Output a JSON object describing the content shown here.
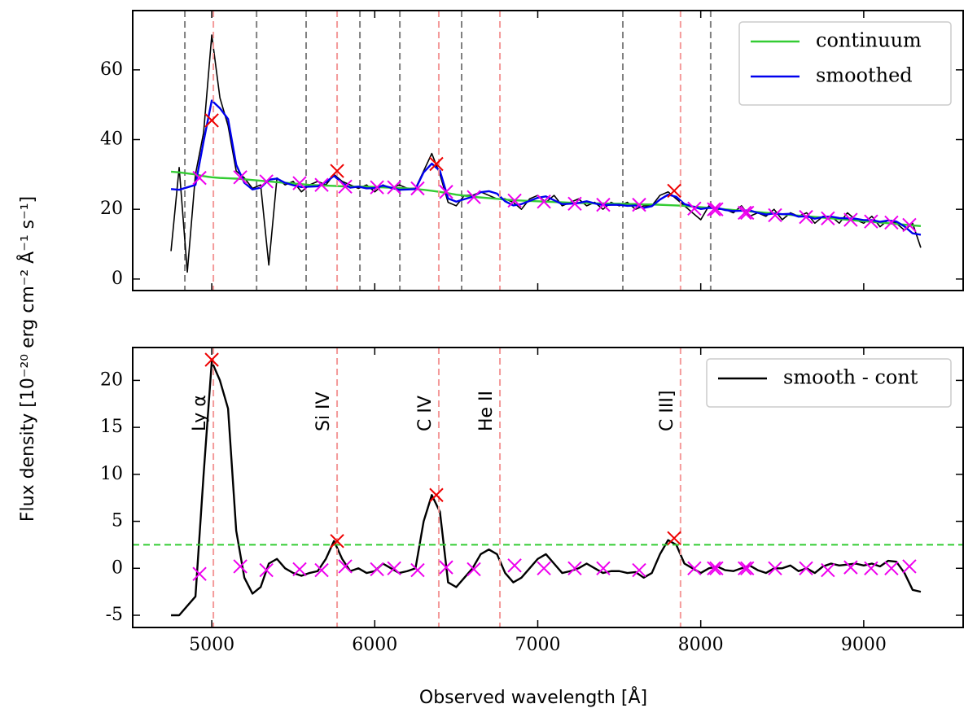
{
  "chart_data": [
    {
      "type": "line",
      "x": [
        4750,
        4800,
        4850,
        4900,
        4950,
        5000,
        5050,
        5100,
        5150,
        5200,
        5250,
        5300,
        5350,
        5400,
        5450,
        5500,
        5550,
        5600,
        5650,
        5700,
        5750,
        5800,
        5850,
        5900,
        5950,
        6000,
        6050,
        6100,
        6150,
        6200,
        6250,
        6300,
        6350,
        6400,
        6450,
        6500,
        6550,
        6600,
        6650,
        6700,
        6750,
        6800,
        6850,
        6900,
        6950,
        7000,
        7050,
        7100,
        7150,
        7200,
        7250,
        7300,
        7350,
        7400,
        7450,
        7500,
        7550,
        7600,
        7650,
        7700,
        7750,
        7800,
        7850,
        7900,
        7950,
        8000,
        8050,
        8100,
        8150,
        8200,
        8250,
        8300,
        8350,
        8400,
        8450,
        8500,
        8550,
        8600,
        8650,
        8700,
        8750,
        8800,
        8850,
        8900,
        8950,
        9000,
        9050,
        9100,
        9150,
        9200,
        9250,
        9300,
        9350
      ],
      "series": [
        {
          "color": "#000000",
          "values": [
            8,
            32,
            2,
            30,
            42,
            70,
            52,
            44,
            31,
            29,
            26,
            27,
            4,
            29,
            27,
            28,
            25,
            27,
            28,
            27,
            30,
            28,
            27,
            26,
            27,
            25,
            27,
            26,
            27,
            26,
            26,
            31,
            36,
            30,
            22,
            21,
            24,
            24,
            25,
            24,
            23,
            23,
            22,
            20,
            23,
            24,
            22,
            24,
            21,
            22,
            23,
            21,
            22,
            20,
            22,
            21,
            22,
            20,
            21,
            21,
            24,
            25,
            23,
            21,
            19,
            17,
            21,
            20,
            20,
            19,
            21,
            18,
            19,
            18,
            20,
            17,
            19,
            18,
            19,
            16,
            18,
            18,
            16,
            19,
            17,
            16,
            18,
            15,
            17,
            16,
            14,
            16,
            9
          ]
        },
        {
          "name": "continuum",
          "color": "#33cc33",
          "values": [
            30.8,
            30.6,
            30.3,
            30,
            29.5,
            29.2,
            29,
            28.9,
            28.8,
            28.6,
            28.4,
            28.2,
            28,
            27.8,
            27.6,
            27.4,
            27.2,
            27,
            26.9,
            26.8,
            26.7,
            26.6,
            26.5,
            26.5,
            26.5,
            26.4,
            26.3,
            26.2,
            26.1,
            26,
            25.8,
            25.6,
            25.3,
            25,
            24.6,
            24.2,
            23.9,
            23.6,
            23.4,
            23.2,
            23,
            22.8,
            22.6,
            22.5,
            22.4,
            22.3,
            22.2,
            22.1,
            22,
            21.9,
            21.8,
            21.8,
            21.7,
            21.7,
            21.6,
            21.6,
            21.5,
            21.5,
            21.4,
            21.4,
            21.3,
            21.2,
            21.1,
            21,
            20.8,
            20.6,
            20.4,
            20.2,
            20,
            19.8,
            19.6,
            19.4,
            19.2,
            19,
            18.8,
            18.6,
            18.4,
            18.2,
            18,
            17.8,
            17.6,
            17.4,
            17.2,
            17,
            16.8,
            16.6,
            16.4,
            16.2,
            16,
            15.8,
            15.6,
            15.4,
            15.2
          ]
        },
        {
          "name": "smoothed",
          "color": "#0000ee",
          "values": [
            25.8,
            25.6,
            26.3,
            27,
            39.5,
            51.2,
            49,
            45.9,
            32.8,
            27.6,
            25.7,
            26.2,
            28.5,
            28.8,
            27.6,
            26.9,
            26.4,
            26.5,
            26.6,
            27.8,
            29.6,
            27.6,
            26.2,
            26.5,
            26,
            26.1,
            26.8,
            26.2,
            25.6,
            25.7,
            25.8,
            30.6,
            33.1,
            31,
            23.1,
            22.2,
            22.9,
            23.6,
            24.9,
            25.2,
            24.5,
            22.3,
            21.1,
            21.5,
            22.4,
            23.3,
            23.7,
            22.6,
            21.5,
            21.6,
            21.8,
            22.3,
            21.7,
            21.2,
            21.3,
            21.3,
            21,
            21.1,
            20.4,
            20.9,
            22.8,
            24.2,
            23.6,
            21.5,
            20.8,
            20.1,
            20.4,
            20.4,
            19.8,
            19.5,
            19.6,
            19.7,
            19,
            18.5,
            18.8,
            18.6,
            18.7,
            17.9,
            18,
            17.3,
            17.8,
            17.9,
            17.5,
            17.4,
            17.3,
            16.9,
            16.9,
            16.4,
            16.8,
            16.5,
            15.1,
            13.1,
            12.7
          ]
        }
      ],
      "gray_lines": [
        4835,
        5275,
        5579,
        5909,
        6154,
        6533,
        7522,
        8061
      ],
      "red_lines": [
        5010,
        5769,
        6393,
        6768,
        7876
      ],
      "peaks": {
        "color": "#ee0000",
        "x": [
          5000,
          5769,
          6378,
          7837
        ],
        "values": [
          45.5,
          31,
          33,
          25.3
        ]
      },
      "points": {
        "color": "#ee00ee",
        "x": [
          4925,
          5175,
          5335,
          5539,
          5674,
          5819,
          6014,
          6119,
          6263,
          6438,
          6608,
          6858,
          7038,
          7227,
          7402,
          7622,
          7961,
          8081,
          8096,
          8270,
          8285,
          8456,
          8646,
          8780,
          8920,
          9045,
          9170,
          9280
        ],
        "values": [
          29,
          29.2,
          28,
          27.5,
          27,
          26.5,
          26.3,
          26.3,
          26,
          25,
          23.5,
          22.5,
          22.2,
          21.6,
          21.3,
          21.3,
          20.2,
          20,
          20,
          19,
          19,
          18.3,
          17.8,
          17.4,
          17,
          16.5,
          16.2,
          15.5
        ]
      },
      "xlim": [
        4515,
        9610
      ],
      "xticks": [
        5000,
        6000,
        7000,
        8000,
        9000
      ],
      "ylim": [
        -3.3,
        77
      ],
      "yticks": [
        0,
        20,
        40,
        60
      ],
      "legend": "upper right",
      "ylabel": "Flux density [10⁻²⁰ erg cm⁻² Å⁻¹ s⁻¹]"
    },
    {
      "type": "line",
      "x": [
        4750,
        4800,
        4850,
        4900,
        4950,
        5000,
        5050,
        5100,
        5150,
        5200,
        5250,
        5300,
        5350,
        5400,
        5450,
        5500,
        5550,
        5600,
        5650,
        5700,
        5750,
        5800,
        5850,
        5900,
        5950,
        6000,
        6050,
        6100,
        6150,
        6200,
        6250,
        6300,
        6350,
        6400,
        6450,
        6500,
        6550,
        6600,
        6650,
        6700,
        6750,
        6800,
        6850,
        6900,
        6950,
        7000,
        7050,
        7100,
        7150,
        7200,
        7250,
        7300,
        7350,
        7400,
        7450,
        7500,
        7550,
        7600,
        7650,
        7700,
        7750,
        7800,
        7850,
        7900,
        7950,
        8000,
        8050,
        8100,
        8150,
        8200,
        8250,
        8300,
        8350,
        8400,
        8450,
        8500,
        8550,
        8600,
        8650,
        8700,
        8750,
        8800,
        8850,
        8900,
        8950,
        9000,
        9050,
        9100,
        9150,
        9200,
        9250,
        9300,
        9350
      ],
      "series": [
        {
          "name": "smooth - cont",
          "color": "#000000",
          "values": [
            -5,
            -5,
            -4,
            -3,
            10,
            22,
            20,
            17,
            4,
            -1,
            -2.7,
            -2,
            0.5,
            1,
            0,
            -0.5,
            -0.8,
            -0.5,
            -0.3,
            1,
            2.9,
            1,
            -0.3,
            0,
            -0.5,
            -0.3,
            0.5,
            0,
            -0.5,
            -0.3,
            0,
            5,
            7.8,
            6,
            -1.5,
            -2,
            -1,
            0,
            1.5,
            2,
            1.5,
            -0.5,
            -1.5,
            -1,
            0,
            1,
            1.5,
            0.5,
            -0.5,
            -0.3,
            0,
            0.5,
            0,
            -0.5,
            -0.3,
            -0.3,
            -0.5,
            -0.4,
            -1,
            -0.5,
            1.5,
            3,
            2.5,
            0.5,
            0,
            -0.5,
            0,
            0.2,
            -0.2,
            -0.3,
            0,
            0.3,
            -0.2,
            -0.5,
            0,
            0,
            0.3,
            -0.3,
            0,
            -0.5,
            0.2,
            0.5,
            0.3,
            0.4,
            0.5,
            0.3,
            0.5,
            0.2,
            0.8,
            0.7,
            -0.5,
            -2.3,
            -2.5
          ]
        }
      ],
      "threshold": {
        "value": 2.5,
        "color": "#33cc33"
      },
      "line_labels": {
        "x": [
          5010,
          5769,
          6393,
          6768,
          7876
        ],
        "labels": [
          "Ly α",
          "Si IV",
          "C IV",
          "He II",
          "C III]"
        ]
      },
      "peaks": {
        "color": "#ee0000",
        "x": [
          5000,
          5769,
          6378,
          7837
        ],
        "values": [
          22.2,
          2.9,
          7.8,
          3.2
        ]
      },
      "points": {
        "color": "#ee00ee",
        "x": [
          4925,
          5175,
          5335,
          5539,
          5674,
          5819,
          6014,
          6119,
          6263,
          6438,
          6608,
          6858,
          7038,
          7227,
          7402,
          7622,
          7961,
          8081,
          8096,
          8270,
          8285,
          8456,
          8646,
          8780,
          8920,
          9045,
          9170,
          9280
        ],
        "values": [
          -0.6,
          0.2,
          -0.2,
          -0.1,
          -0.2,
          0.2,
          -0.1,
          0,
          -0.2,
          0.1,
          -0.1,
          0.3,
          0,
          0,
          0,
          -0.2,
          0,
          0,
          0,
          0,
          0,
          0,
          0,
          -0.2,
          0.1,
          0,
          0,
          0.2
        ]
      },
      "xlim": [
        4515,
        9610
      ],
      "xticks": [
        5000,
        6000,
        7000,
        8000,
        9000
      ],
      "ylim": [
        -6.3,
        23.5
      ],
      "yticks": [
        -5,
        0,
        5,
        10,
        15,
        20
      ],
      "legend": "upper right",
      "xlabel": "Observed wavelength [Å]"
    }
  ]
}
